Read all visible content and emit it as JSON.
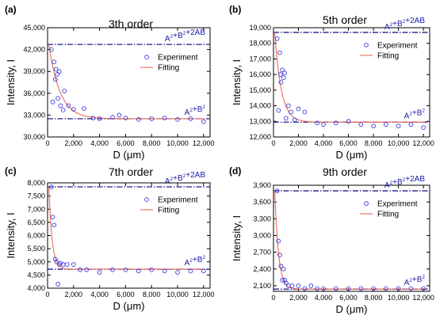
{
  "colors": {
    "experiment": "#3b3bd9",
    "fitting": "#ef6a5a",
    "reference": "#1c1c8c",
    "ref_text": "#1a1aa8"
  },
  "chart_data": [
    {
      "type": "scatter",
      "panel_label": "(a)",
      "title": "3th order",
      "xlabel": "D (μm)",
      "ylabel": "Intensity, I",
      "xlim": [
        0,
        12500
      ],
      "ylim": [
        30000,
        45000
      ],
      "xticks": [
        0,
        2000,
        4000,
        6000,
        8000,
        10000,
        12000
      ],
      "xtick_labels": [
        "0",
        "2,000",
        "4,000",
        "6,000",
        "8,000",
        "10,000",
        "12,000"
      ],
      "yticks": [
        30000,
        33000,
        36000,
        39000,
        42000,
        45000
      ],
      "ytick_labels": [
        "30,000",
        "33,000",
        "36,000",
        "39,000",
        "42,000",
        "45,000"
      ],
      "legend": [
        "Experiment",
        "Fitting"
      ],
      "upper_line": {
        "y": 42700,
        "label": {
          "main": "A",
          "s1": "2",
          "mid": "+B",
          "s2": "2",
          "tail": "+2AB"
        }
      },
      "lower_line": {
        "y": 32500,
        "label": {
          "main": "A",
          "s1": "2",
          "mid": "+B",
          "s2": "2",
          "tail": ""
        }
      },
      "fit": {
        "y_inf": 32500,
        "amplitude": 10200,
        "decay": 850,
        "x_start": 100
      },
      "series": [
        {
          "name": "Experiment",
          "x": [
            300,
            400,
            500,
            600,
            650,
            750,
            800,
            900,
            1000,
            1200,
            1300,
            1600,
            2000,
            2800,
            3500,
            4000,
            5000,
            5500,
            6000,
            7000,
            8000,
            9000,
            10000,
            11000,
            12000
          ],
          "y": [
            42000,
            34800,
            40300,
            37900,
            39300,
            38600,
            35300,
            39000,
            34300,
            33700,
            36300,
            34300,
            33800,
            33900,
            32600,
            32500,
            32700,
            33000,
            32600,
            32400,
            32500,
            32600,
            32400,
            32500,
            32100
          ]
        }
      ]
    },
    {
      "type": "scatter",
      "panel_label": "(b)",
      "title": "5th order",
      "xlabel": "D (μm)",
      "ylabel": "Intensity, I",
      "xlim": [
        0,
        12500
      ],
      "ylim": [
        12000,
        19000
      ],
      "xticks": [
        0,
        2000,
        4000,
        6000,
        8000,
        10000,
        12000
      ],
      "xtick_labels": [
        "0",
        "2,000",
        "4,000",
        "6,000",
        "8,000",
        "10,000",
        "12,000"
      ],
      "yticks": [
        12000,
        13000,
        14000,
        15000,
        16000,
        17000,
        18000,
        19000
      ],
      "ytick_labels": [
        "12,000",
        "13,000",
        "14,000",
        "15,000",
        "16,000",
        "17,000",
        "18,000",
        "19,000"
      ],
      "legend": [
        "Experiment",
        "Fitting"
      ],
      "upper_line": {
        "y": 18700,
        "label": {
          "main": "A",
          "s1": "2",
          "mid": "+B",
          "s2": "2",
          "tail": "+2AB"
        }
      },
      "lower_line": {
        "y": 12950,
        "label": {
          "main": "A",
          "s1": "2",
          "mid": "+B",
          "s2": "2",
          "tail": ""
        }
      },
      "fit": {
        "y_inf": 12950,
        "amplitude": 5750,
        "decay": 520,
        "x_start": 100
      },
      "series": [
        {
          "name": "Experiment",
          "x": [
            300,
            400,
            500,
            550,
            600,
            700,
            800,
            900,
            1000,
            1200,
            1400,
            1700,
            2000,
            2500,
            3500,
            4000,
            5000,
            6000,
            7000,
            8000,
            9000,
            10000,
            11000,
            12000
          ],
          "y": [
            18300,
            13700,
            17400,
            16000,
            15500,
            16300,
            15800,
            16100,
            13200,
            14000,
            13600,
            13100,
            13800,
            13600,
            12900,
            12800,
            12900,
            13000,
            12800,
            12700,
            12800,
            12700,
            12800,
            12600
          ]
        }
      ]
    },
    {
      "type": "scatter",
      "panel_label": "(c)",
      "title": "7th order",
      "xlabel": "D (μm)",
      "ylabel": "Intensity, I",
      "xlim": [
        0,
        12500
      ],
      "ylim": [
        4000,
        8000
      ],
      "xticks": [
        0,
        2000,
        4000,
        6000,
        8000,
        10000,
        12000
      ],
      "xtick_labels": [
        "0",
        "2,000",
        "4,000",
        "6,000",
        "8,000",
        "10,000",
        "12,000"
      ],
      "yticks": [
        4000,
        4500,
        5000,
        5500,
        6000,
        6500,
        7000,
        7500,
        8000
      ],
      "ytick_labels": [
        "4,000",
        "4,500",
        "5,000",
        "5,500",
        "6,000",
        "6,500",
        "7,000",
        "7,500",
        "8,000"
      ],
      "legend": [
        "Experiment",
        "Fitting"
      ],
      "upper_line": {
        "y": 7850,
        "label": {
          "main": "A",
          "s1": "2",
          "mid": "+B",
          "s2": "2",
          "tail": "+2AB"
        }
      },
      "lower_line": {
        "y": 4720,
        "label": {
          "main": "A",
          "s1": "2",
          "mid": "+B",
          "s2": "2",
          "tail": ""
        }
      },
      "fit": {
        "y_inf": 4720,
        "amplitude": 3130,
        "decay": 250,
        "x_start": 100
      },
      "series": [
        {
          "name": "Experiment",
          "x": [
            300,
            400,
            500,
            600,
            700,
            800,
            900,
            1000,
            1200,
            1500,
            2000,
            2500,
            3000,
            4000,
            5000,
            6000,
            7000,
            8000,
            9000,
            10000,
            11000,
            12000
          ],
          "y": [
            7850,
            6700,
            6400,
            5100,
            5000,
            4150,
            4900,
            4950,
            4900,
            4900,
            4900,
            4700,
            4700,
            4600,
            4700,
            4700,
            4650,
            4700,
            4650,
            4600,
            4650,
            4650
          ]
        }
      ]
    },
    {
      "type": "scatter",
      "panel_label": "(d)",
      "title": "9th order",
      "xlabel": "D (μm)",
      "ylabel": "Intensity, I",
      "xlim": [
        0,
        12500
      ],
      "ylim": [
        2000,
        3900
      ],
      "xticks": [
        0,
        2000,
        4000,
        6000,
        8000,
        10000,
        12000
      ],
      "xtick_labels": [
        "0",
        "2,000",
        "4,000",
        "6,000",
        "8,000",
        "10,000",
        "12,000"
      ],
      "yticks": [
        2100,
        2400,
        2700,
        3000,
        3300,
        3600,
        3900
      ],
      "ytick_labels": [
        "2,100",
        "2,400",
        "2,700",
        "3,000",
        "3,300",
        "3,600",
        "3,900"
      ],
      "legend": [
        "Experiment",
        "Fitting"
      ],
      "upper_line": {
        "y": 3800,
        "label": {
          "main": "A",
          "s1": "2",
          "mid": "+B",
          "s2": "2",
          "tail": "+2AB"
        }
      },
      "lower_line": {
        "y": 2040,
        "label": {
          "main": "A",
          "s1": "2",
          "mid": "+B",
          "s2": "2",
          "tail": ""
        }
      },
      "fit": {
        "y_inf": 2040,
        "amplitude": 1760,
        "decay": 300,
        "x_start": 100
      },
      "series": [
        {
          "name": "Experiment",
          "x": [
            300,
            400,
            500,
            600,
            700,
            800,
            900,
            1000,
            1200,
            1500,
            2000,
            2500,
            3000,
            3500,
            4000,
            5000,
            6000,
            7000,
            8000,
            9000,
            10000,
            11000,
            12000
          ],
          "y": [
            3800,
            2900,
            2650,
            2450,
            2200,
            2400,
            2200,
            2150,
            2100,
            2100,
            2100,
            2050,
            2100,
            2050,
            2050,
            2050,
            2050,
            2050,
            2050,
            2050,
            2050,
            2050,
            2050
          ]
        }
      ]
    }
  ]
}
